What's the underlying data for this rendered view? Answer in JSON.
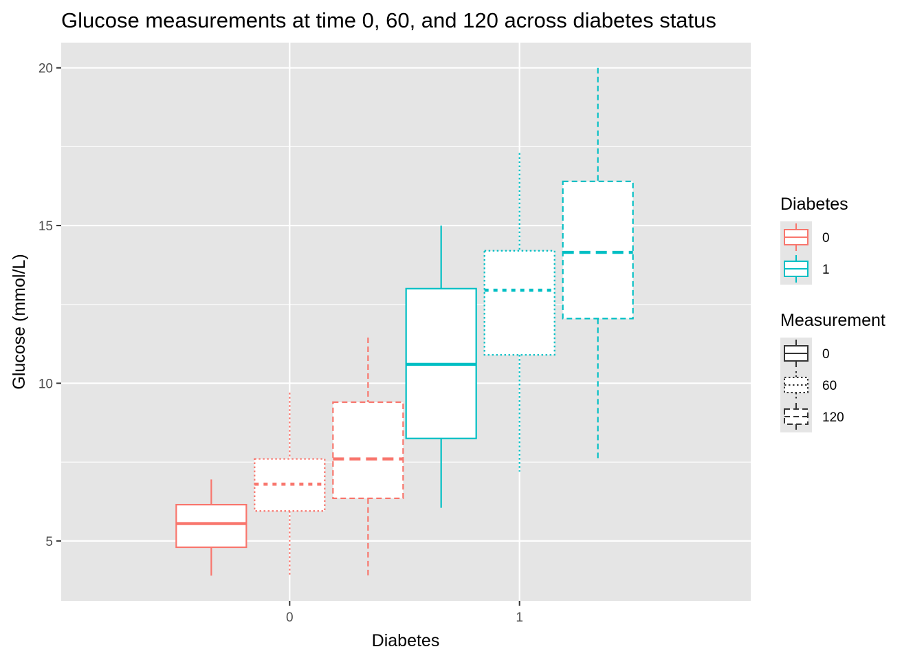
{
  "chart_data": {
    "type": "boxplot",
    "title": "Glucose measurements at time 0, 60, and 120 across diabetes status",
    "xlabel": "Diabetes",
    "ylabel": "Glucose (mmol/L)",
    "categories": [
      "0",
      "1"
    ],
    "y_ticks": [
      5,
      10,
      15,
      20
    ],
    "y_tick_labels": [
      "5",
      "10",
      "15",
      "20"
    ],
    "ylim": [
      3.1,
      20.8
    ],
    "grid": true,
    "series": [
      {
        "name": "0",
        "linetype": "solid",
        "boxes": [
          {
            "group": "0",
            "min": 3.9,
            "q1": 4.8,
            "median": 5.55,
            "q3": 6.15,
            "max": 6.95
          },
          {
            "group": "1",
            "min": 6.05,
            "q1": 8.25,
            "median": 10.6,
            "q3": 13.0,
            "max": 15.0
          }
        ]
      },
      {
        "name": "60",
        "linetype": "dotted",
        "boxes": [
          {
            "group": "0",
            "min": 3.9,
            "q1": 5.95,
            "median": 6.8,
            "q3": 7.6,
            "max": 9.7
          },
          {
            "group": "1",
            "min": 7.2,
            "q1": 10.9,
            "median": 12.95,
            "q3": 14.2,
            "max": 17.3
          }
        ]
      },
      {
        "name": "120",
        "linetype": "dashed",
        "boxes": [
          {
            "group": "0",
            "min": 3.9,
            "q1": 6.35,
            "median": 7.6,
            "q3": 9.4,
            "max": 11.45
          },
          {
            "group": "1",
            "min": 7.55,
            "q1": 12.05,
            "median": 14.15,
            "q3": 16.4,
            "max": 20.0
          }
        ]
      }
    ],
    "legends": [
      {
        "title": "Diabetes",
        "items": [
          {
            "label": "0",
            "color": "#f8766d"
          },
          {
            "label": "1",
            "color": "#00bfc4"
          }
        ]
      },
      {
        "title": "Measurement",
        "items": [
          {
            "label": "0",
            "linetype": "solid"
          },
          {
            "label": "60",
            "linetype": "dotted"
          },
          {
            "label": "120",
            "linetype": "dashed"
          }
        ]
      }
    ],
    "legend_position": "right"
  },
  "colors": {
    "panel_bg": "#e5e5e5",
    "grid_line": "#ffffff",
    "diabetes_0": "#f8766d",
    "diabetes_1": "#00bfc4"
  }
}
